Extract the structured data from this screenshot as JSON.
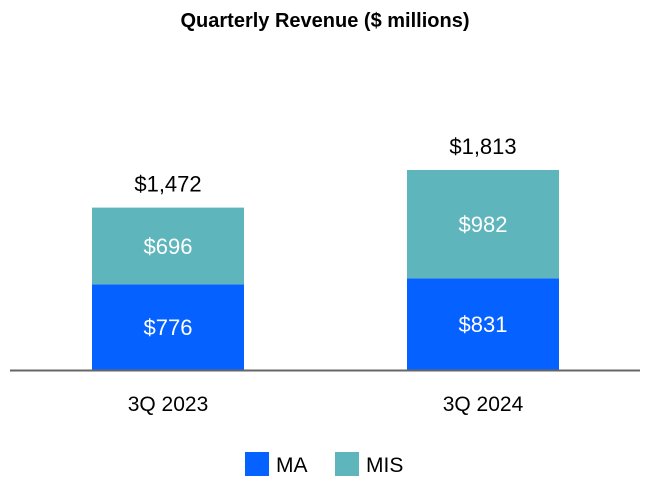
{
  "chart_data": {
    "type": "bar",
    "stacked": true,
    "title": "Quarterly Revenue ($ millions)",
    "xlabel": "",
    "ylabel": "",
    "categories": [
      "3Q 2023",
      "3Q 2024"
    ],
    "series": [
      {
        "name": "MA",
        "values": [
          776,
          831
        ],
        "labels": [
          "$776",
          "$831"
        ],
        "color": "#0561FF"
      },
      {
        "name": "MIS",
        "values": [
          696,
          982
        ],
        "labels": [
          "$696",
          "$982"
        ],
        "color": "#5EB5BC"
      }
    ],
    "totals": [
      1472,
      1813
    ],
    "total_labels": [
      "$1,472",
      "$1,813"
    ],
    "ylim": [
      0,
      1813
    ],
    "grid": false,
    "legend_position": "bottom",
    "axis_color": "#666666"
  }
}
